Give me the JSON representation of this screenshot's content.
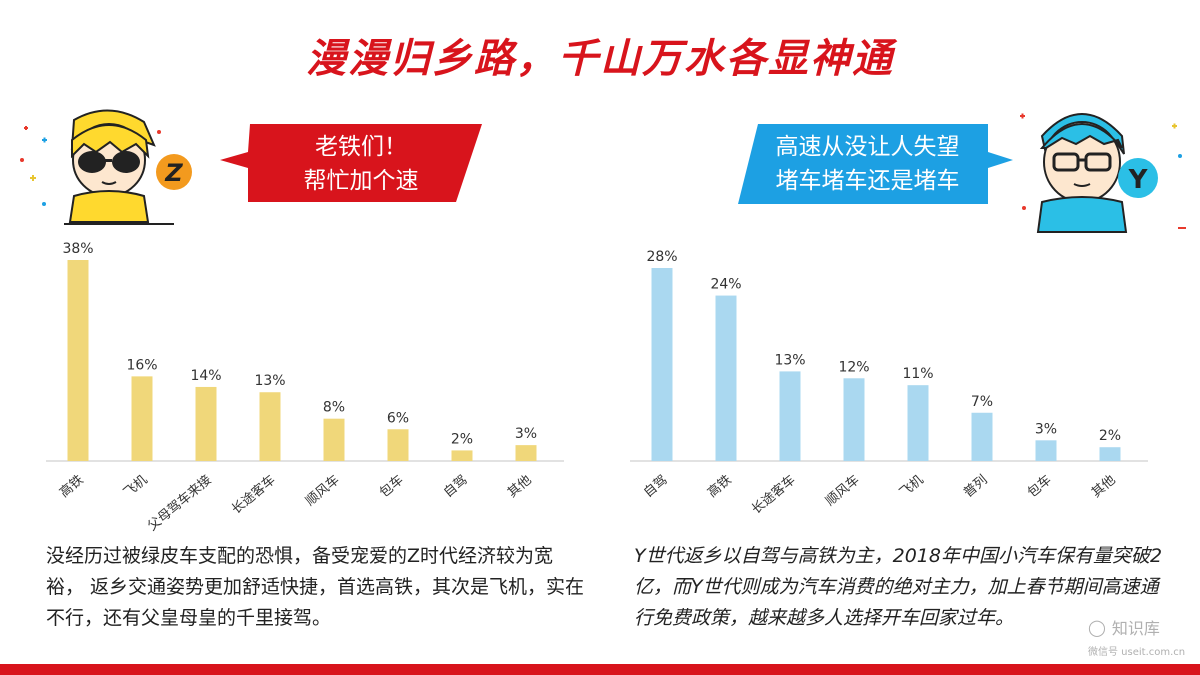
{
  "title": "漫漫归乡路，千山万水各显神通",
  "left_bubble": {
    "line1": "老铁们！",
    "line2": "帮忙加个速"
  },
  "right_bubble": {
    "line1": "高速从没让人失望",
    "line2": "堵车堵车还是堵车"
  },
  "left_badge": "Z",
  "right_badge": "Y",
  "colors": {
    "red": "#d8141c",
    "blue": "#1da0e3",
    "yellow_bar": "#f0d77a",
    "blue_bar": "#aad8f0"
  },
  "chart_data": [
    {
      "type": "bar",
      "title": "",
      "categories": [
        "高铁",
        "飞机",
        "父母驾车来接",
        "长途客车",
        "顺风车",
        "包车",
        "自驾",
        "其他"
      ],
      "values": [
        38,
        16,
        14,
        13,
        8,
        6,
        2,
        3
      ],
      "data_labels": [
        "38%",
        "16%",
        "14%",
        "13%",
        "8%",
        "6%",
        "2%",
        "3%"
      ],
      "unit": "%",
      "ylim": [
        0,
        38
      ]
    },
    {
      "type": "bar",
      "title": "",
      "categories": [
        "自驾",
        "高铁",
        "长途客车",
        "顺风车",
        "飞机",
        "普列",
        "包车",
        "其他"
      ],
      "values": [
        28,
        24,
        13,
        12,
        11,
        7,
        3,
        2
      ],
      "data_labels": [
        "28%",
        "24%",
        "13%",
        "12%",
        "11%",
        "7%",
        "3%",
        "2%"
      ],
      "unit": "%",
      "ylim": [
        0,
        28
      ]
    }
  ],
  "desc_left": "没经历过被绿皮车支配的恐惧，备受宠爱的Z时代经济较为宽裕， 返乡交通姿势更加舒适快捷，首选高铁，其次是飞机，实在不行，还有父皇母皇的千里接驾。",
  "desc_right": "Y世代返乡以自驾与高铁为主，2018年中国小汽车保有量突破2亿，而Y世代则成为汽车消费的绝对主力，加上春节期间高速通行免费政策，越来越多人选择开车回家过年。",
  "watermark": {
    "brand": "知识库",
    "sub": "微信号 useit.com.cn"
  }
}
